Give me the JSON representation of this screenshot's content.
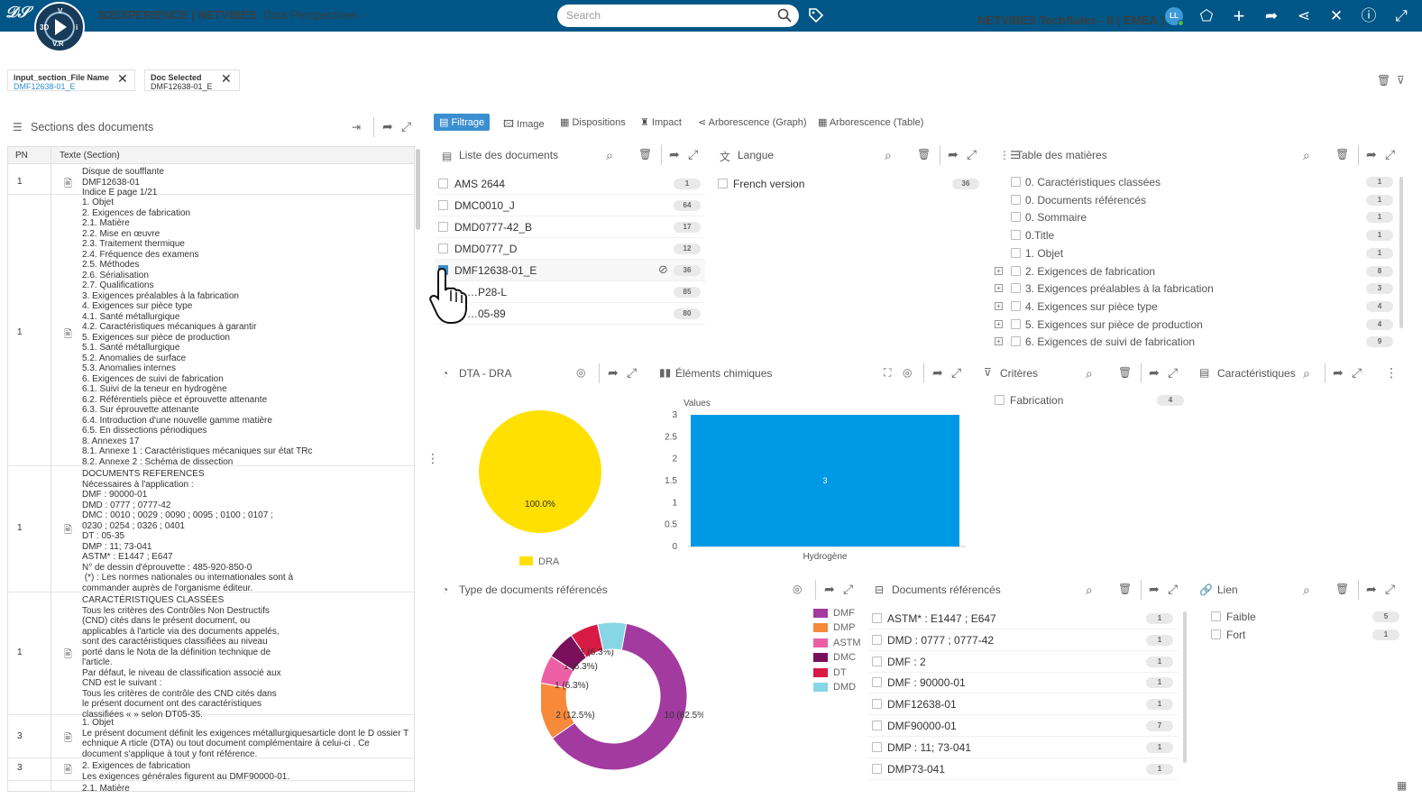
{
  "topbar": {
    "brand": "3DEXPERIENCE | NETVIBES",
    "app": "Data Perspectives -",
    "compass_v": "V",
    "compass_r": "R",
    "compass_3d": "3D",
    "compass_i": "i",
    "search_placeholder": "Search",
    "tenant": "NETVIBES TechSales - 8 ( EMEA )",
    "avatar": "LL"
  },
  "chips": [
    {
      "key": "input_section_File Name",
      "value": "DMF12638-01_E"
    },
    {
      "key": "Doc Selected",
      "value": "DMF12638-01_E"
    }
  ],
  "left_panel": {
    "title": "Sections des documents",
    "col_pn": "PN",
    "col_text": "Texte (Section)",
    "rows": [
      {
        "pn": "1",
        "text": "Disque de soufflante\nDMF12638-01\nIndice E page 1/21"
      },
      {
        "pn": "1",
        "text": "1. Objet\n2. Exigences de fabrication\n2.1. Matière\n2.2. Mise en œuvre\n2.3. Traitement thermique\n2.4. Fréquence des examens\n2.5. Méthodes\n2.6. Sérialisation\n2.7. Qualifications\n3. Exigences préalables à la fabrication\n4. Exigences sur pièce type\n4.1. Santé métallurgique\n4.2. Caractéristiques mécaniques à garantir\n5. Exigences sur pièce de production\n5.1. Santé métallurgique\n5.2. Anomalies de surface\n5.3. Anomalies internes\n6. Exigences de suivi de fabrication\n6.1. Suivi de la teneur en hydrogène\n6.2. Référentiels pièce et éprouvette attenante\n6.3. Sur éprouvette attenante\n6.4. Introduction d'une nouvelle gamme matière\n6.5. En dissections périodiques\n8. Annexes 17\n8.1. Annexe 1 : Caractéristiques mécaniques sur état TRc\n8.2. Annexe 2 : Schéma de dissection"
      },
      {
        "pn": "1",
        "text": "DOCUMENTS REFERENCES\nNécessaires à l'application :\nDMF : 90000-01\nDMD : 0777 ; 0777-42\nDMC : 0010 ; 0029 ; 0090 ; 0095 ; 0100 ; 0107 ;\n0230 ; 0254 ; 0326 ; 0401\nDT : 05-35\nDMP : 11; 73-041\nASTM* : E1447 ; E647\nN° de dessin d'éprouvette : 485-920-850-0\n (*) : Les normes nationales ou internationales sont à\ncommander auprès de l'organisme éditeur."
      },
      {
        "pn": "1",
        "text": "CARACTÉRISTIQUES CLASSÉES\nTous les critères des Contrôles Non Destructifs\n(CND) cités dans le présent document, ou\napplicables à l'article via des documents appelés,\nsont des caractéristiques classifiées au niveau\nporté dans le Nota de la définition technique de\nl'article.\nPar défaut, le niveau de classification associé aux\nCND est le suivant :\nTous les critères de contrôle des CND cités dans\nle présent document ont des caractéristiques\nclassifiées « » selon DT05-35."
      },
      {
        "pn": "3",
        "text": "1. Objet\nLe présent document définit les exigences métallurgiquesarticle dont le D ossier T\nechnique A rticle (DTA) ou tout document complémentaire à celui-ci . Ce\ndocument s'applique à tout y font référence."
      },
      {
        "pn": "3",
        "text": "2. Exigences de fabrication\nLes exigences générales figurent au DMF90000-01."
      },
      {
        "pn": "",
        "text": "2.1. Matière"
      }
    ]
  },
  "tabs": [
    "Filtrage",
    "Image",
    "Dispositions",
    "Impact",
    "Arborescence (Graph)",
    "Arborescence (Table)"
  ],
  "documents": {
    "title": "Liste des documents",
    "items": [
      {
        "name": "AMS 2644",
        "count": "1"
      },
      {
        "name": "DMC0010_J",
        "count": "64"
      },
      {
        "name": "DMD0777-42_B",
        "count": "17"
      },
      {
        "name": "DMD0777_D",
        "count": "12"
      },
      {
        "name": "DMF12638-01_E",
        "count": "36"
      },
      {
        "name": "…P28-L",
        "count": "85"
      },
      {
        "name": "…05-89",
        "count": "80"
      }
    ]
  },
  "langue": {
    "title": "Langue",
    "items": [
      {
        "name": "French version",
        "count": "36"
      }
    ]
  },
  "toc": {
    "title": "Table des matières",
    "items": [
      {
        "name": "0. Caractéristiques classées",
        "count": "1",
        "expand": false
      },
      {
        "name": "0. Documents référencés",
        "count": "1",
        "expand": false
      },
      {
        "name": "0. Sommaire",
        "count": "1",
        "expand": false
      },
      {
        "name": "0.Title",
        "count": "1",
        "expand": false
      },
      {
        "name": "1. Objet",
        "count": "1",
        "expand": false
      },
      {
        "name": "2. Exigences de fabrication",
        "count": "8",
        "expand": true
      },
      {
        "name": "3. Exigences préalables à la fabrication",
        "count": "3",
        "expand": true
      },
      {
        "name": "4. Exigences sur pièce type",
        "count": "4",
        "expand": true
      },
      {
        "name": "5. Exigences sur pièce de production",
        "count": "4",
        "expand": true
      },
      {
        "name": "6. Exigences de suivi de fabrication",
        "count": "9",
        "expand": true
      }
    ]
  },
  "dta_dra": {
    "title": "DTA - DRA",
    "chart_data": {
      "type": "pie",
      "series": [
        {
          "name": "DRA",
          "value": 100.0,
          "label": "100.0%"
        }
      ]
    },
    "color": "#ffe000"
  },
  "elements_chimiques": {
    "title": "Éléments chimiques",
    "chart_data": {
      "type": "bar",
      "categories": [
        "Hydrogène"
      ],
      "values": [
        3
      ],
      "value_labels": [
        "3"
      ],
      "ylabel": "Values",
      "ylim": [
        0,
        3
      ],
      "yticks": [
        "0",
        "0.5",
        "1",
        "1.5",
        "2",
        "2.5",
        "3"
      ]
    },
    "color": "#0099e6"
  },
  "criteres": {
    "title": "Critères",
    "items": [
      {
        "name": "Fabrication",
        "count": "4"
      }
    ]
  },
  "caracteristiques": {
    "title": "Caractéristiques"
  },
  "type_docs": {
    "title": "Type de documents référencés",
    "chart_data": {
      "type": "pie",
      "series": [
        {
          "name": "DMF",
          "value": 10,
          "label": "10 (62.5%)"
        },
        {
          "name": "DMP",
          "value": 2,
          "label": "2 (12.5%)"
        },
        {
          "name": "ASTM",
          "value": 1,
          "label": "1 (6.3%)"
        },
        {
          "name": "DMC",
          "value": 1,
          "label": "1 (6.3%)"
        },
        {
          "name": "DT",
          "value": 1,
          "label": "1 (6.3%)"
        },
        {
          "name": "DMD",
          "value": 1,
          "label": ""
        }
      ]
    },
    "colors": [
      "#a23a9f",
      "#f6893a",
      "#ec5fa5",
      "#7a0f5c",
      "#d81b45",
      "#86d6e6"
    ]
  },
  "docs_ref": {
    "title": "Documents référencés",
    "items": [
      {
        "name": "ASTM* : E1447 ; E647",
        "count": "1"
      },
      {
        "name": "DMD : 0777 ; 0777-42",
        "count": "1"
      },
      {
        "name": "DMF : 2",
        "count": "1"
      },
      {
        "name": "DMF : 90000-01",
        "count": "1"
      },
      {
        "name": "DMF12638-01",
        "count": "1"
      },
      {
        "name": "DMF90000-01",
        "count": "7"
      },
      {
        "name": "DMP : 11; 73-041",
        "count": "1"
      },
      {
        "name": "DMP73-041",
        "count": "1"
      }
    ]
  },
  "lien": {
    "title": "Lien",
    "items": [
      {
        "name": "Faible",
        "count": "5"
      },
      {
        "name": "Fort",
        "count": "1"
      }
    ]
  }
}
